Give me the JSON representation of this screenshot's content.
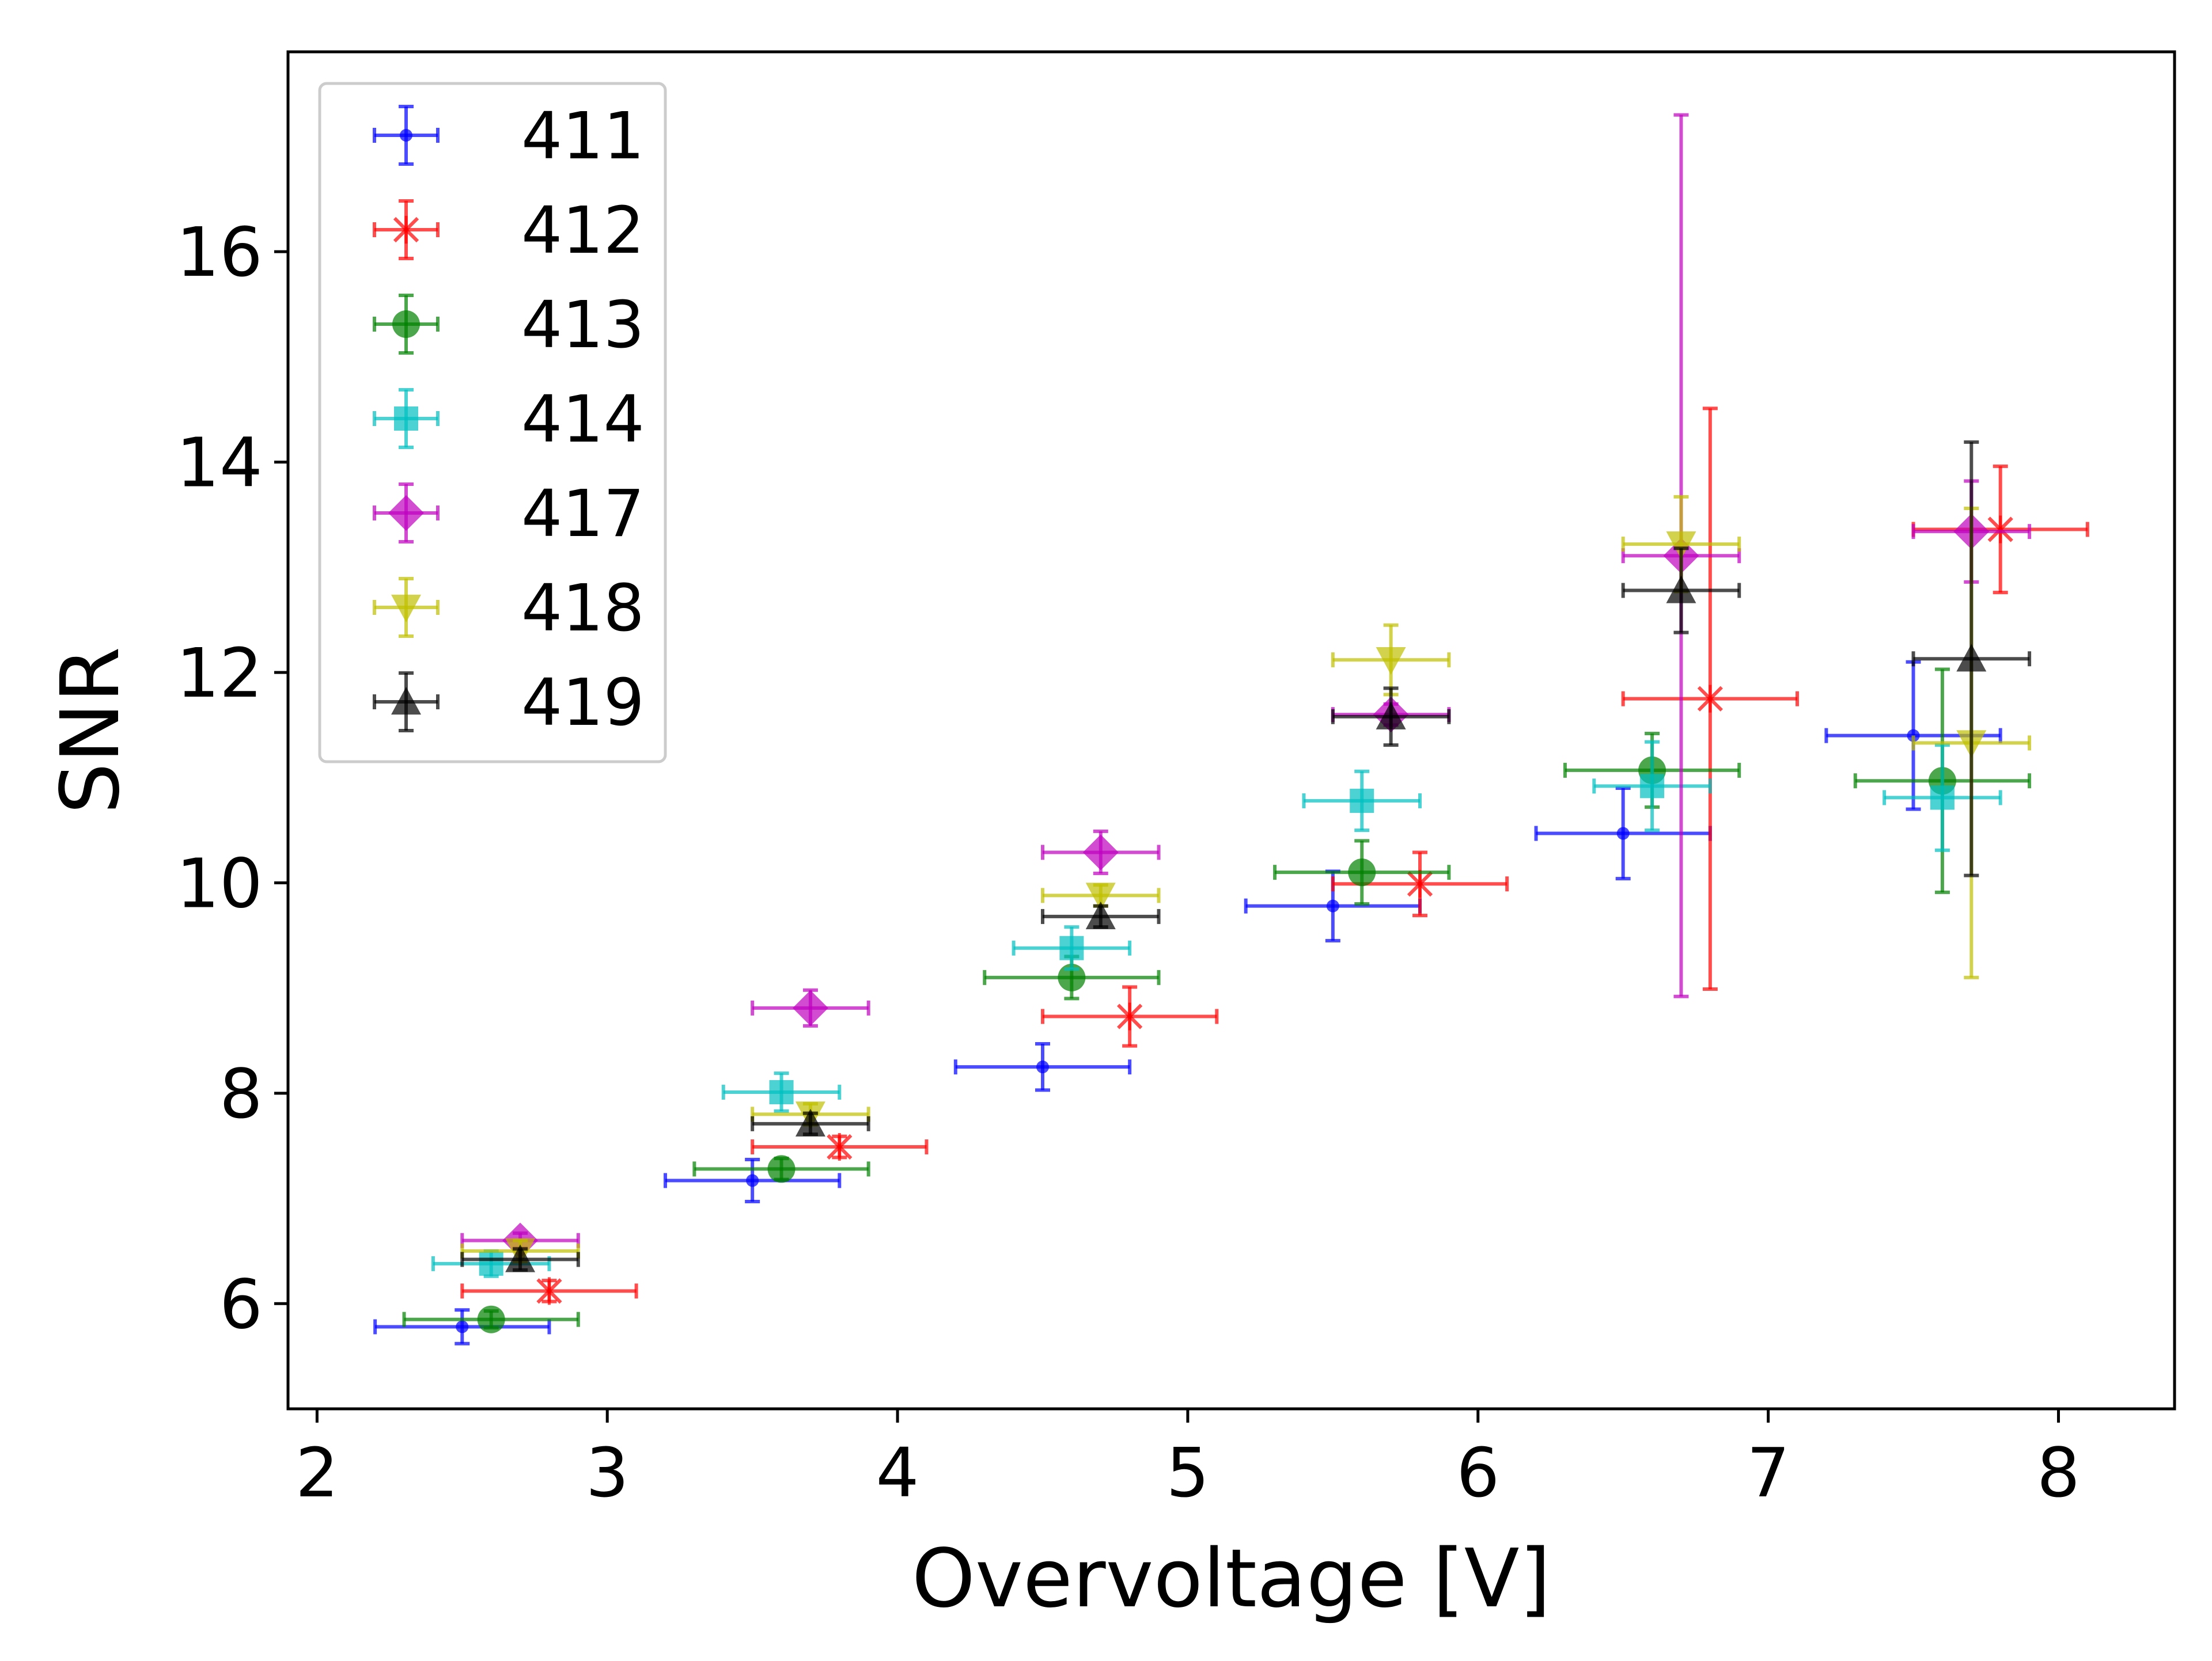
{
  "chart_data": {
    "type": "scatter",
    "title": "",
    "xlabel": "Overvoltage [V]",
    "ylabel": "SNR",
    "xlim": [
      1.9,
      8.4
    ],
    "ylim": [
      5.0,
      17.9
    ],
    "xticks": [
      2,
      3,
      4,
      5,
      6,
      7,
      8
    ],
    "yticks": [
      6,
      8,
      10,
      12,
      14,
      16
    ],
    "grid": false,
    "legend_position": "top-left",
    "error_bars": true,
    "series": [
      {
        "name": "411",
        "color": "#0000ff",
        "marker": "point",
        "points": [
          {
            "x": 2.5,
            "y": 5.78,
            "xerr": 0.3,
            "yerr": 0.16
          },
          {
            "x": 3.5,
            "y": 7.17,
            "xerr": 0.3,
            "yerr": 0.2
          },
          {
            "x": 4.5,
            "y": 8.25,
            "xerr": 0.3,
            "yerr": 0.22
          },
          {
            "x": 5.5,
            "y": 9.78,
            "xerr": 0.3,
            "yerr": 0.33
          },
          {
            "x": 6.5,
            "y": 10.47,
            "xerr": 0.3,
            "yerr": 0.43
          },
          {
            "x": 7.5,
            "y": 11.4,
            "xerr": 0.3,
            "yerr": 0.7
          }
        ]
      },
      {
        "name": "412",
        "color": "#ff0000",
        "marker": "x",
        "points": [
          {
            "x": 2.8,
            "y": 6.12,
            "xerr": 0.3,
            "yerr": 0.1
          },
          {
            "x": 3.8,
            "y": 7.49,
            "xerr": 0.3,
            "yerr": 0.1
          },
          {
            "x": 4.8,
            "y": 8.73,
            "xerr": 0.3,
            "yerr": 0.28
          },
          {
            "x": 5.8,
            "y": 9.99,
            "xerr": 0.3,
            "yerr": 0.3
          },
          {
            "x": 6.8,
            "y": 11.75,
            "xerr": 0.3,
            "yerr": 2.76
          },
          {
            "x": 7.8,
            "y": 13.36,
            "xerr": 0.3,
            "yerr": 0.6
          }
        ]
      },
      {
        "name": "413",
        "color": "#008000",
        "marker": "circle",
        "points": [
          {
            "x": 2.6,
            "y": 5.85,
            "xerr": 0.3,
            "yerr": 0.08
          },
          {
            "x": 3.6,
            "y": 7.28,
            "xerr": 0.3,
            "yerr": 0.1
          },
          {
            "x": 4.6,
            "y": 9.1,
            "xerr": 0.3,
            "yerr": 0.2
          },
          {
            "x": 5.6,
            "y": 10.1,
            "xerr": 0.3,
            "yerr": 0.3
          },
          {
            "x": 6.6,
            "y": 11.07,
            "xerr": 0.3,
            "yerr": 0.35
          },
          {
            "x": 7.6,
            "y": 10.97,
            "xerr": 0.3,
            "yerr": 1.06
          }
        ]
      },
      {
        "name": "414",
        "color": "#00bfbf",
        "marker": "square",
        "points": [
          {
            "x": 2.6,
            "y": 6.38,
            "xerr": 0.2,
            "yerr": 0.12
          },
          {
            "x": 3.6,
            "y": 8.01,
            "xerr": 0.2,
            "yerr": 0.18
          },
          {
            "x": 4.6,
            "y": 9.38,
            "xerr": 0.2,
            "yerr": 0.2
          },
          {
            "x": 5.6,
            "y": 10.78,
            "xerr": 0.2,
            "yerr": 0.28
          },
          {
            "x": 6.6,
            "y": 10.92,
            "xerr": 0.2,
            "yerr": 0.42
          },
          {
            "x": 7.6,
            "y": 10.81,
            "xerr": 0.2,
            "yerr": 0.5
          }
        ]
      },
      {
        "name": "417",
        "color": "#bf00bf",
        "marker": "diamond",
        "points": [
          {
            "x": 2.7,
            "y": 6.6,
            "xerr": 0.2,
            "yerr": 0.07
          },
          {
            "x": 3.7,
            "y": 8.81,
            "xerr": 0.2,
            "yerr": 0.17
          },
          {
            "x": 4.7,
            "y": 10.29,
            "xerr": 0.2,
            "yerr": 0.2
          },
          {
            "x": 5.7,
            "y": 11.6,
            "xerr": 0.2,
            "yerr": 0.1
          },
          {
            "x": 6.7,
            "y": 13.11,
            "xerr": 0.2,
            "yerr": 4.19
          },
          {
            "x": 7.7,
            "y": 13.34,
            "xerr": 0.2,
            "yerr": 0.48
          }
        ]
      },
      {
        "name": "418",
        "color": "#bfbf00",
        "marker": "triangle-down",
        "points": [
          {
            "x": 2.7,
            "y": 6.5,
            "xerr": 0.2,
            "yerr": 0.1
          },
          {
            "x": 3.7,
            "y": 7.8,
            "xerr": 0.2,
            "yerr": 0.1
          },
          {
            "x": 4.7,
            "y": 9.88,
            "xerr": 0.2,
            "yerr": 0.1
          },
          {
            "x": 5.7,
            "y": 12.12,
            "xerr": 0.2,
            "yerr": 0.33
          },
          {
            "x": 6.7,
            "y": 13.22,
            "xerr": 0.2,
            "yerr": 0.45
          },
          {
            "x": 7.7,
            "y": 11.33,
            "xerr": 0.2,
            "yerr": 2.23
          }
        ]
      },
      {
        "name": "419",
        "color": "#000000",
        "marker": "triangle-up",
        "points": [
          {
            "x": 2.7,
            "y": 6.42,
            "xerr": 0.2,
            "yerr": 0.1
          },
          {
            "x": 3.7,
            "y": 7.71,
            "xerr": 0.2,
            "yerr": 0.1
          },
          {
            "x": 4.7,
            "y": 9.68,
            "xerr": 0.2,
            "yerr": 0.1
          },
          {
            "x": 5.7,
            "y": 11.58,
            "xerr": 0.2,
            "yerr": 0.27
          },
          {
            "x": 6.7,
            "y": 12.78,
            "xerr": 0.2,
            "yerr": 0.4
          },
          {
            "x": 7.7,
            "y": 12.13,
            "xerr": 0.2,
            "yerr": 2.06
          }
        ]
      }
    ]
  }
}
